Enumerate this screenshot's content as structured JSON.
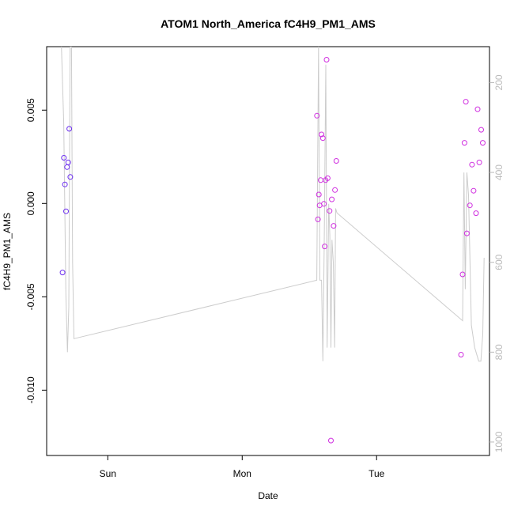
{
  "chart_data": {
    "type": "scatter",
    "title": "ATOM1 North_America fC4H9_PM1_AMS",
    "xlabel": "Date",
    "ylabel": "fC4H9_PM1_AMS",
    "x_ticks": [
      {
        "label": "Sun",
        "day": 1
      },
      {
        "label": "Mon",
        "day": 2
      },
      {
        "label": "Tue",
        "day": 3
      }
    ],
    "xlim_days": [
      0.545,
      3.84
    ],
    "y_ticks": [
      0.005,
      0.0,
      -0.005,
      -0.01
    ],
    "y_tick_labels": [
      "0.005",
      "0.000",
      "-0.005",
      "-0.010"
    ],
    "ylim": [
      -0.0135,
      0.0084
    ],
    "right_axis": {
      "ticks": [
        200,
        400,
        600,
        800,
        1000
      ],
      "tick_labels": [
        "200",
        "400",
        "600",
        "800",
        "1000"
      ],
      "ylim": [
        120,
        1030
      ],
      "color": "#bbbbbb"
    },
    "grid": false,
    "legend": "none",
    "series": [
      {
        "role": "points",
        "axis": "left",
        "marker": "open-circle",
        "points": [
          {
            "x": 0.663,
            "y": -0.0037,
            "color": "#6b2cf0"
          },
          {
            "x": 0.673,
            "y": 0.00245,
            "color": "#6b2cf0"
          },
          {
            "x": 0.681,
            "y": 0.00102,
            "color": "#6b2cf0"
          },
          {
            "x": 0.689,
            "y": -0.00042,
            "color": "#6b2cf0"
          },
          {
            "x": 0.697,
            "y": 0.00195,
            "color": "#6b2cf0"
          },
          {
            "x": 0.705,
            "y": 0.0022,
            "color": "#6b2cf0"
          },
          {
            "x": 0.713,
            "y": 0.004,
            "color": "#6b2cf0"
          },
          {
            "x": 0.721,
            "y": 0.00142,
            "color": "#6b2cf0"
          },
          {
            "x": 2.556,
            "y": 0.0047,
            "color": "#d030e0"
          },
          {
            "x": 2.564,
            "y": -0.00085,
            "color": "#d030e0"
          },
          {
            "x": 2.57,
            "y": 0.00048,
            "color": "#d030e0"
          },
          {
            "x": 2.576,
            "y": -0.0001,
            "color": "#d030e0"
          },
          {
            "x": 2.584,
            "y": 0.00125,
            "color": "#d030e0"
          },
          {
            "x": 2.59,
            "y": 0.0037,
            "color": "#d030e0"
          },
          {
            "x": 2.6,
            "y": 0.0035,
            "color": "#d030e0"
          },
          {
            "x": 2.608,
            "y": -2e-05,
            "color": "#d030e0"
          },
          {
            "x": 2.614,
            "y": -0.0023,
            "color": "#d030e0"
          },
          {
            "x": 2.62,
            "y": 0.00125,
            "color": "#d030e0"
          },
          {
            "x": 2.628,
            "y": 0.0077,
            "color": "#d030e0"
          },
          {
            "x": 2.636,
            "y": 0.00135,
            "color": "#d030e0"
          },
          {
            "x": 2.65,
            "y": -0.0004,
            "color": "#d030e0"
          },
          {
            "x": 2.66,
            "y": -0.0127,
            "color": "#d030e0"
          },
          {
            "x": 2.667,
            "y": 0.00022,
            "color": "#d030e0"
          },
          {
            "x": 2.68,
            "y": -0.0012,
            "color": "#d030e0"
          },
          {
            "x": 2.69,
            "y": 0.00072,
            "color": "#d030e0"
          },
          {
            "x": 2.7,
            "y": 0.00228,
            "color": "#d030e0"
          },
          {
            "x": 3.628,
            "y": -0.0081,
            "color": "#d030e0"
          },
          {
            "x": 3.64,
            "y": -0.0038,
            "color": "#d030e0"
          },
          {
            "x": 3.654,
            "y": 0.00325,
            "color": "#d030e0"
          },
          {
            "x": 3.664,
            "y": 0.00545,
            "color": "#d030e0"
          },
          {
            "x": 3.672,
            "y": -0.0016,
            "color": "#d030e0"
          },
          {
            "x": 3.694,
            "y": -0.0001,
            "color": "#d030e0"
          },
          {
            "x": 3.71,
            "y": 0.00208,
            "color": "#d030e0"
          },
          {
            "x": 3.722,
            "y": 0.00068,
            "color": "#d030e0"
          },
          {
            "x": 3.74,
            "y": -0.00052,
            "color": "#d030e0"
          },
          {
            "x": 3.752,
            "y": 0.00505,
            "color": "#d030e0"
          },
          {
            "x": 3.764,
            "y": 0.0022,
            "color": "#d030e0"
          },
          {
            "x": 3.778,
            "y": 0.00395,
            "color": "#d030e0"
          },
          {
            "x": 3.79,
            "y": 0.00325,
            "color": "#d030e0"
          }
        ]
      },
      {
        "role": "line",
        "axis": "right",
        "color": "#cccccc",
        "points": [
          [
            0.655,
            120
          ],
          [
            0.672,
            290
          ],
          [
            0.688,
            670
          ],
          [
            0.7,
            800
          ],
          [
            0.71,
            700
          ],
          [
            0.72,
            120
          ],
          [
            0.73,
            120
          ],
          [
            0.738,
            600
          ],
          [
            0.748,
            770
          ],
          [
            2.555,
            640
          ],
          [
            2.568,
            120
          ],
          [
            2.578,
            640
          ],
          [
            2.59,
            640
          ],
          [
            2.6,
            820
          ],
          [
            2.61,
            560
          ],
          [
            2.622,
            160
          ],
          [
            2.632,
            790
          ],
          [
            2.644,
            470
          ],
          [
            2.652,
            540
          ],
          [
            2.66,
            790
          ],
          [
            2.668,
            550
          ],
          [
            2.678,
            600
          ],
          [
            2.688,
            790
          ],
          [
            2.695,
            480
          ],
          [
            2.705,
            490
          ],
          [
            3.64,
            730
          ],
          [
            3.65,
            400
          ],
          [
            3.66,
            660
          ],
          [
            3.672,
            400
          ],
          [
            3.684,
            450
          ],
          [
            3.705,
            740
          ],
          [
            3.73,
            790
          ],
          [
            3.76,
            820
          ],
          [
            3.776,
            820
          ],
          [
            3.79,
            760
          ],
          [
            3.8,
            590
          ]
        ]
      }
    ]
  }
}
